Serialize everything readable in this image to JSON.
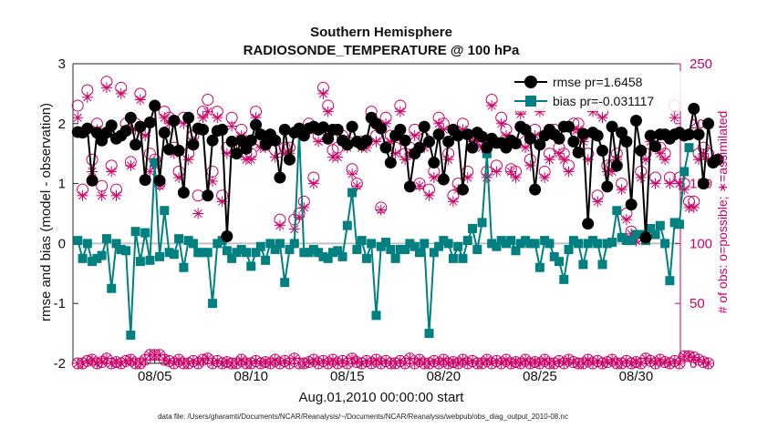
{
  "chart_data": {
    "type": "line",
    "title": "Southern Hemisphere",
    "subtitle": "RADIOSONDE_TEMPERATURE @ 100 hPa",
    "xlabel": "Aug.01,2010 00:00:00 start",
    "ylabel": "rmse and bias (model - observation)",
    "ylabel_right": "# of obs: o=possible; ∗=assimilated",
    "footnote": "data file: /Users/gharamti/Documents/NCAR/Reanalysis/~/Documents/NCAR/Reanalysis/webpub/obs_diag_output_2010-08.nc",
    "x_range_days": [
      0.75,
      32.3
    ],
    "ylim": [
      -2,
      3
    ],
    "ylim_right": [
      0,
      250
    ],
    "x_ticks": [
      {
        "day": 5,
        "label": "08/05"
      },
      {
        "day": 10,
        "label": "08/10"
      },
      {
        "day": 15,
        "label": "08/15"
      },
      {
        "day": 20,
        "label": "08/20"
      },
      {
        "day": 25,
        "label": "08/25"
      },
      {
        "day": 30,
        "label": "08/30"
      }
    ],
    "y_ticks": [
      -2,
      -1,
      0,
      1,
      2,
      3
    ],
    "y_ticks_right": [
      0,
      50,
      100,
      150,
      200,
      250
    ],
    "legend": [
      {
        "name": "rmse pr=1.6458",
        "series": "rmse"
      },
      {
        "name": "bias pr=-0.031117",
        "series": "bias"
      }
    ],
    "legend_position": "top-right",
    "colors": {
      "rmse": "#000000",
      "bias": "#008080",
      "obs": "#cc0066",
      "zero_line": "#c0c0c0",
      "axis": "#222222"
    },
    "series": [
      {
        "name": "rmse",
        "x_start_day": 1.0,
        "x_step_days": 0.25,
        "values": [
          1.86,
          1.85,
          1.92,
          1.05,
          1.85,
          1.72,
          1.85,
          1.97,
          1.75,
          1.8,
          1.88,
          2.1,
          1.65,
          1.95,
          1.06,
          2.02,
          2.3,
          1.05,
          1.85,
          1.57,
          2.05,
          1.55,
          0.85,
          2.1,
          1.65,
          1.92,
          1.9,
          0.8,
          1.72,
          1.88,
          1.9,
          0.12,
          1.7,
          1.5,
          1.72,
          1.58,
          1.72,
          1.98,
          1.82,
          1.65,
          1.82,
          1.72,
          1.1,
          1.9,
          1.4,
          1.85,
          1.92,
          1.8,
          1.92,
          1.95,
          1.9,
          1.94,
          1.75,
          1.9,
          1.9,
          1.72,
          1.65,
          1.95,
          1.7,
          1.65,
          1.72,
          2.1,
          2.0,
          1.92,
          1.6,
          1.35,
          1.8,
          1.9,
          1.72,
          0.95,
          1.5,
          1.6,
          1.95,
          1.7,
          1.35,
          1.82,
          1.07,
          1.7,
          1.9,
          1.8,
          0.9,
          1.82,
          1.6,
          1.85,
          1.78,
          1.6,
          1.75,
          1.68,
          1.68,
          1.6,
          1.72,
          1.67,
          1.95,
          1.9,
          1.75,
          0.9,
          1.65,
          1.8,
          1.9,
          1.82,
          1.75,
          1.95,
          1.95,
          1.7,
          1.52,
          1.83,
          0.33,
          1.85,
          1.8,
          1.55,
          0.95,
          1.95,
          1.3,
          1.85,
          1.7,
          0.65,
          2.05,
          1.55,
          0.1,
          1.8,
          1.62,
          1.82,
          1.82,
          1.75,
          1.82,
          1.85,
          1.8,
          1.82,
          2.25,
          1.82,
          1.0,
          2.0,
          1.35,
          1.4
        ]
      },
      {
        "name": "bias",
        "x_start_day": 1.0,
        "x_step_days": 0.25,
        "values": [
          0.05,
          -0.25,
          0.0,
          -0.3,
          -0.25,
          -0.2,
          0.08,
          -0.75,
          0.0,
          -0.1,
          -0.12,
          -1.53,
          0.2,
          -0.3,
          0.18,
          -0.28,
          1.35,
          -0.22,
          0.55,
          -0.15,
          -0.18,
          0.08,
          -0.4,
          0.05,
          0.0,
          -0.15,
          -0.15,
          -0.15,
          -1.0,
          0.0,
          0.05,
          -0.12,
          -0.25,
          -0.15,
          -0.1,
          -0.15,
          -0.38,
          -0.15,
          -0.05,
          -0.28,
          0.0,
          -0.1,
          0.0,
          -0.65,
          -0.1,
          0.0,
          1.85,
          -0.15,
          -0.15,
          -0.1,
          -0.15,
          -0.22,
          -0.25,
          -0.15,
          -0.12,
          -0.22,
          0.3,
          0.85,
          -0.1,
          0.05,
          -0.25,
          0.0,
          -1.2,
          -0.05,
          0.02,
          -0.1,
          -0.25,
          -0.1,
          -0.1,
          0.0,
          -0.05,
          -0.15,
          0.0,
          -1.5,
          -0.15,
          -0.05,
          0.05,
          0.0,
          -0.25,
          -0.05,
          -0.25,
          0.05,
          0.25,
          -0.1,
          0.35,
          1.5,
          0.0,
          -0.05,
          0.05,
          0.0,
          0.05,
          -0.12,
          0.0,
          0.05,
          0.0,
          0.0,
          -0.4,
          0.05,
          0.0,
          -0.22,
          -0.3,
          -0.6,
          -0.1,
          0.05,
          0.0,
          -0.35,
          0.0,
          0.05,
          0.0,
          -0.35,
          0.0,
          0.02,
          0.55,
          0.1,
          0.05,
          0.05,
          0.15,
          0.15,
          0.05,
          0.25,
          0.15,
          0.3,
          0.0,
          -0.62,
          0.35,
          0.32,
          1.2,
          1.6
        ]
      },
      {
        "name": "obs_possible",
        "x_start_day": 1.0,
        "x_step_days": 0.25,
        "values": [
          215,
          145,
          228,
          170,
          200,
          148,
          235,
          165,
          145,
          230,
          200,
          168,
          200,
          225,
          195,
          175,
          170,
          150,
          210,
          205,
          180,
          160,
          205,
          175,
          190,
          140,
          210,
          220,
          160,
          210,
          140,
          180,
          205,
          182,
          195,
          175,
          175,
          210,
          185,
          185,
          190,
          178,
          120,
          180,
          180,
          120,
          125,
          135,
          200,
          155,
          190,
          230,
          215,
          178,
          180,
          190,
          185,
          162,
          150,
          185,
          185,
          210,
          190,
          130,
          205,
          190,
          180,
          215,
          175,
          180,
          195,
          150,
          188,
          145,
          160,
          205,
          200,
          175,
          140,
          150,
          200,
          160,
          190,
          190,
          185,
          160,
          220,
          165,
          205,
          195,
          162,
          160,
          212,
          185,
          170,
          195,
          215,
          160,
          175,
          195,
          180,
          175,
          165,
          200,
          200,
          190,
          175,
          215,
          140,
          210,
          165,
          165,
          175,
          150,
          125,
          110,
          105,
          160,
          175,
          190,
          155,
          180,
          175,
          155,
          215,
          155,
          150,
          135,
          135,
          175,
          180,
          175
        ]
      },
      {
        "name": "obs_assimilated",
        "x_start_day": 1.0,
        "x_step_days": 0.25,
        "values": [
          205,
          140,
          222,
          160,
          195,
          140,
          230,
          160,
          140,
          225,
          195,
          165,
          195,
          220,
          190,
          160,
          165,
          148,
          205,
          200,
          175,
          155,
          200,
          170,
          185,
          125,
          205,
          210,
          152,
          205,
          135,
          175,
          198,
          178,
          190,
          170,
          170,
          205,
          180,
          180,
          185,
          172,
          115,
          175,
          175,
          112,
          122,
          130,
          195,
          150,
          185,
          225,
          210,
          172,
          172,
          185,
          180,
          158,
          148,
          180,
          180,
          205,
          185,
          128,
          200,
          185,
          175,
          210,
          170,
          175,
          190,
          148,
          180,
          140,
          155,
          200,
          195,
          170,
          135,
          145,
          195,
          155,
          185,
          185,
          180,
          155,
          215,
          160,
          200,
          190,
          160,
          155,
          208,
          180,
          165,
          190,
          210,
          155,
          170,
          190,
          175,
          170,
          160,
          195,
          195,
          185,
          170,
          210,
          135,
          205,
          160,
          160,
          170,
          145,
          120,
          108,
          102,
          155,
          170,
          185,
          150,
          175,
          170,
          150,
          205,
          150,
          145,
          130,
          130,
          170,
          175,
          170
        ]
      },
      {
        "name": "obs_bottom_possible",
        "x_start_day": 1.0,
        "x_step_days": 0.25,
        "values": [
          0,
          0,
          2,
          3,
          0,
          1,
          4,
          0,
          1,
          0,
          2,
          3,
          0,
          0,
          3,
          7,
          7,
          7,
          3,
          2,
          0,
          3,
          0,
          0,
          2,
          0,
          3,
          4,
          0,
          2,
          0,
          1,
          0,
          0,
          3,
          0,
          0,
          2,
          0,
          1,
          0,
          3,
          0,
          2,
          0,
          4,
          0,
          0,
          1,
          3,
          0,
          2,
          0,
          3,
          0,
          2,
          0,
          4,
          1,
          0,
          2,
          0,
          3,
          0,
          2,
          0,
          0,
          2,
          0,
          4,
          0,
          3,
          0,
          0,
          2,
          0,
          3,
          0,
          1,
          0,
          3,
          0,
          2,
          0,
          0,
          3,
          0,
          2,
          0,
          3,
          0,
          1,
          0,
          3,
          0,
          1,
          0,
          3,
          0,
          0,
          2,
          0,
          3,
          1,
          0,
          0,
          3,
          0,
          2,
          0,
          1,
          3,
          0,
          0,
          2,
          0,
          1,
          0,
          4,
          2,
          0,
          3,
          1,
          0,
          2,
          0,
          6,
          6,
          5,
          3,
          1,
          0
        ]
      },
      {
        "name": "obs_bottom_assimilated",
        "x_start_day": 1.0,
        "x_step_days": 0.25,
        "values": [
          0,
          0,
          2,
          3,
          0,
          1,
          4,
          0,
          1,
          0,
          2,
          3,
          0,
          0,
          3,
          7,
          7,
          7,
          3,
          2,
          0,
          3,
          0,
          0,
          2,
          0,
          3,
          4,
          0,
          2,
          0,
          1,
          0,
          0,
          3,
          0,
          0,
          2,
          0,
          1,
          0,
          3,
          0,
          2,
          0,
          4,
          0,
          0,
          1,
          3,
          0,
          2,
          0,
          3,
          0,
          2,
          0,
          4,
          1,
          0,
          2,
          0,
          3,
          0,
          2,
          0,
          0,
          2,
          0,
          4,
          0,
          3,
          0,
          0,
          2,
          0,
          3,
          0,
          1,
          0,
          3,
          0,
          2,
          0,
          0,
          3,
          0,
          2,
          0,
          3,
          0,
          1,
          0,
          3,
          0,
          1,
          0,
          3,
          0,
          0,
          2,
          0,
          3,
          1,
          0,
          0,
          3,
          0,
          2,
          0,
          1,
          3,
          0,
          0,
          2,
          0,
          1,
          0,
          4,
          2,
          0,
          3,
          1,
          0,
          2,
          0,
          6,
          6,
          5,
          3,
          1,
          0
        ]
      }
    ]
  }
}
